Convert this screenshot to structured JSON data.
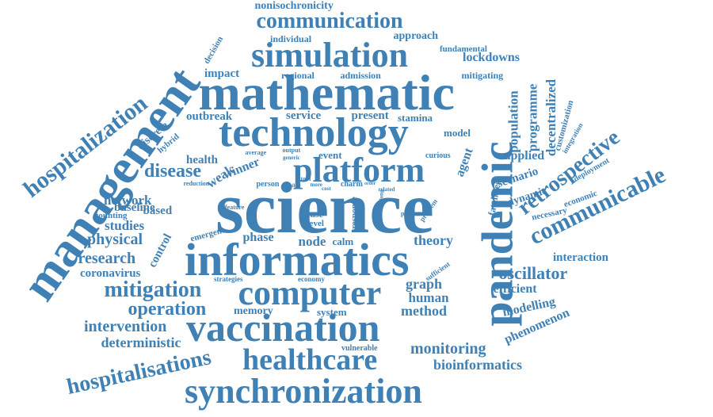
{
  "colors": {
    "primary": "#3f80b5",
    "background": "#ffffff"
  },
  "words": [
    "science",
    "informatics",
    "management",
    "pandemic",
    "mathematic",
    "technology",
    "vaccination",
    "computer",
    "synchronization",
    "platform",
    "simulation",
    "communicable",
    "healthcare",
    "hospitalization",
    "communication",
    "hospitalisations",
    "retrospective",
    "mitigation",
    "operation",
    "oscillator",
    "disease",
    "research",
    "physical",
    "intervention",
    "monitoring",
    "bioinformatics",
    "deterministic",
    "graph",
    "method",
    "human",
    "theory",
    "node",
    "phase",
    "studies",
    "network",
    "coronavirus",
    "interaction",
    "efficient",
    "modelling",
    "phenomenon",
    "population",
    "programme",
    "decentralized",
    "applied",
    "lockdowns",
    "impact",
    "regional",
    "admission",
    "mitigating",
    "approach",
    "fundamental",
    "individual",
    "nonisochronicity",
    "outbreak",
    "service",
    "present",
    "stamina",
    "health",
    "weak",
    "winner",
    "baseline",
    "control",
    "based",
    "counting",
    "model",
    "agent",
    "scenario",
    "dynamic",
    "necessary",
    "economic",
    "fatalities",
    "customization",
    "integration",
    "deployment",
    "curious",
    "event",
    "discrete",
    "hybrid",
    "decision",
    "memory",
    "system",
    "vulnerable",
    "calm",
    "case",
    "level",
    "response",
    "term",
    "emergent",
    "strategies",
    "economy",
    "person",
    "tool",
    "charm",
    "more",
    "output",
    "generic",
    "average",
    "reduction",
    "feature",
    "related",
    "lifelong",
    "predict",
    "problem",
    "sufficient",
    "allow",
    "cost",
    "order"
  ]
}
